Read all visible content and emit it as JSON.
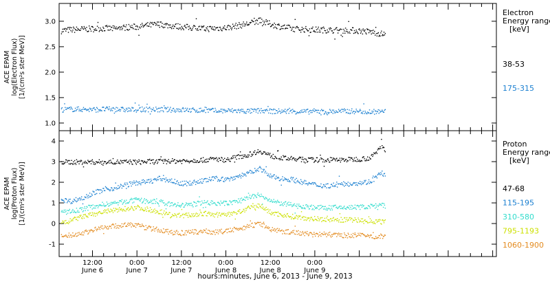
{
  "chart_data": [
    {
      "type": "scatter",
      "panel": "electron",
      "ylabel": [
        "ACE EPAM",
        "log(Electron Flux)",
        "[1/(cm²s ster MeV)]"
      ],
      "ylim": [
        0.85,
        3.35
      ],
      "yticks": [
        {
          "v": 1.0,
          "label": "1.0"
        },
        {
          "v": 1.5,
          "label": "1.5"
        },
        {
          "v": 2.0,
          "label": "2.0"
        },
        {
          "v": 2.5,
          "label": "2.5"
        },
        {
          "v": 3.0,
          "label": "3.0"
        }
      ],
      "legend_title": [
        "Electron",
        "Energy ranges",
        "[keV]"
      ],
      "series": [
        {
          "name": "38-53",
          "color": "#000000",
          "x": [
            0,
            3,
            6,
            9,
            12,
            15,
            18,
            21,
            24,
            27,
            30,
            33,
            36,
            39,
            42,
            45,
            48,
            51,
            54,
            57,
            60,
            63,
            66,
            69,
            72,
            75,
            78,
            81,
            84,
            87,
            90
          ],
          "values": [
            2.82,
            2.84,
            2.85,
            2.86,
            2.87,
            2.86,
            2.89,
            2.9,
            2.93,
            2.95,
            2.92,
            2.9,
            2.88,
            2.86,
            2.87,
            2.88,
            2.92,
            2.96,
            3.02,
            2.95,
            2.9,
            2.86,
            2.85,
            2.84,
            2.84,
            2.83,
            2.83,
            2.82,
            2.8,
            2.76,
            2.74
          ]
        },
        {
          "name": "175-315",
          "color": "#1a7fd0",
          "x": [
            0,
            3,
            6,
            9,
            12,
            15,
            18,
            21,
            24,
            27,
            30,
            33,
            36,
            39,
            42,
            45,
            48,
            51,
            54,
            57,
            60,
            63,
            66,
            69,
            72,
            75,
            78,
            81,
            84,
            87,
            90
          ],
          "values": [
            1.27,
            1.28,
            1.28,
            1.27,
            1.28,
            1.28,
            1.27,
            1.27,
            1.28,
            1.27,
            1.27,
            1.27,
            1.26,
            1.26,
            1.25,
            1.25,
            1.25,
            1.24,
            1.25,
            1.24,
            1.24,
            1.24,
            1.23,
            1.24,
            1.23,
            1.24,
            1.24,
            1.24,
            1.23,
            1.23,
            1.23
          ]
        }
      ]
    },
    {
      "type": "scatter",
      "panel": "proton",
      "ylabel": [
        "ACE EPAM",
        "log(Proton Flux)",
        "[1/(cm²s ster MeV)]"
      ],
      "ylim": [
        -1.6,
        4.5
      ],
      "yticks": [
        {
          "v": -1,
          "label": "-1"
        },
        {
          "v": 0,
          "label": "0"
        },
        {
          "v": 1,
          "label": "1"
        },
        {
          "v": 2,
          "label": "2"
        },
        {
          "v": 3,
          "label": "3"
        },
        {
          "v": 4,
          "label": "4"
        }
      ],
      "legend_title": [
        "Proton",
        "Energy ranges",
        "[keV]"
      ],
      "series": [
        {
          "name": "47-68",
          "color": "#000000",
          "x": [
            0,
            3,
            6,
            9,
            12,
            15,
            18,
            21,
            24,
            27,
            30,
            33,
            36,
            39,
            42,
            45,
            48,
            51,
            54,
            57,
            60,
            63,
            66,
            69,
            72,
            75,
            78,
            81,
            84,
            87,
            90
          ],
          "values": [
            3.0,
            3.0,
            3.0,
            3.0,
            3.0,
            3.0,
            3.0,
            3.0,
            3.02,
            3.02,
            3.05,
            3.05,
            3.08,
            3.1,
            3.15,
            3.1,
            3.25,
            3.35,
            3.55,
            3.3,
            3.2,
            3.15,
            3.12,
            3.1,
            3.1,
            3.1,
            3.12,
            3.15,
            3.2,
            3.8,
            3.15
          ]
        },
        {
          "name": "115-195",
          "color": "#1a7fd0",
          "x": [
            0,
            3,
            6,
            9,
            12,
            15,
            18,
            21,
            24,
            27,
            30,
            33,
            36,
            39,
            42,
            45,
            48,
            51,
            54,
            57,
            60,
            63,
            66,
            69,
            72,
            75,
            78,
            81,
            84,
            87,
            90
          ],
          "values": [
            1.2,
            1.1,
            1.25,
            1.5,
            1.65,
            1.75,
            1.9,
            2.0,
            2.05,
            2.2,
            2.1,
            1.95,
            2.0,
            2.1,
            2.2,
            2.15,
            2.3,
            2.45,
            2.7,
            2.3,
            2.2,
            2.15,
            2.0,
            1.9,
            1.85,
            1.9,
            1.95,
            2.0,
            2.05,
            2.5,
            1.9
          ]
        },
        {
          "name": "310-580",
          "color": "#30dccc",
          "x": [
            0,
            3,
            6,
            9,
            12,
            15,
            18,
            21,
            24,
            27,
            30,
            33,
            36,
            39,
            42,
            45,
            48,
            51,
            54,
            57,
            60,
            63,
            66,
            69,
            72,
            75,
            78,
            81,
            84,
            87,
            90
          ],
          "values": [
            0.55,
            0.6,
            0.7,
            0.85,
            0.95,
            1.0,
            1.1,
            1.15,
            1.1,
            1.05,
            0.95,
            0.9,
            0.95,
            1.05,
            1.0,
            1.0,
            1.1,
            1.3,
            1.4,
            1.1,
            1.0,
            0.9,
            0.85,
            0.8,
            0.78,
            0.8,
            0.8,
            0.82,
            0.85,
            0.9,
            0.8
          ]
        },
        {
          "name": "795-1193",
          "color": "#cce000",
          "x": [
            0,
            3,
            6,
            9,
            12,
            15,
            18,
            21,
            24,
            27,
            30,
            33,
            36,
            39,
            42,
            45,
            48,
            51,
            54,
            57,
            60,
            63,
            66,
            69,
            72,
            75,
            78,
            81,
            84,
            87,
            90
          ],
          "values": [
            0.0,
            0.15,
            0.35,
            0.45,
            0.6,
            0.65,
            0.75,
            0.8,
            0.7,
            0.6,
            0.45,
            0.4,
            0.45,
            0.5,
            0.45,
            0.45,
            0.55,
            0.75,
            0.9,
            0.55,
            0.45,
            0.35,
            0.3,
            0.25,
            0.22,
            0.2,
            0.2,
            0.18,
            0.15,
            0.1,
            0.05
          ]
        },
        {
          "name": "1060-1900",
          "color": "#e38a1e",
          "x": [
            0,
            3,
            6,
            9,
            12,
            15,
            18,
            21,
            24,
            27,
            30,
            33,
            36,
            39,
            42,
            45,
            48,
            51,
            54,
            57,
            60,
            63,
            66,
            69,
            72,
            75,
            78,
            81,
            84,
            87,
            90
          ],
          "values": [
            -0.6,
            -0.55,
            -0.45,
            -0.3,
            -0.15,
            -0.1,
            -0.05,
            -0.05,
            -0.2,
            -0.3,
            -0.4,
            -0.45,
            -0.4,
            -0.35,
            -0.4,
            -0.35,
            -0.25,
            -0.1,
            0.0,
            -0.25,
            -0.35,
            -0.4,
            -0.45,
            -0.5,
            -0.5,
            -0.55,
            -0.55,
            -0.55,
            -0.6,
            -0.6,
            -0.65
          ]
        }
      ]
    }
  ],
  "x_axis": {
    "unit": "hours since June 6 2013 00:00",
    "range": [
      3,
      121
    ],
    "major_ticks": [
      {
        "x": 12,
        "time": "12:00",
        "day": "June 6"
      },
      {
        "x": 24,
        "time": "0:00",
        "day": "June 7"
      },
      {
        "x": 36,
        "time": "12:00",
        "day": "June 7"
      },
      {
        "x": 48,
        "time": "0:00",
        "day": "June 8"
      },
      {
        "x": 60,
        "time": "12:00",
        "day": "June 8"
      },
      {
        "x": 72,
        "time": "0:00",
        "day": "June 9"
      }
    ],
    "xlabel": "hours:minutes, June 6, 2013 - June 9, 2013"
  }
}
